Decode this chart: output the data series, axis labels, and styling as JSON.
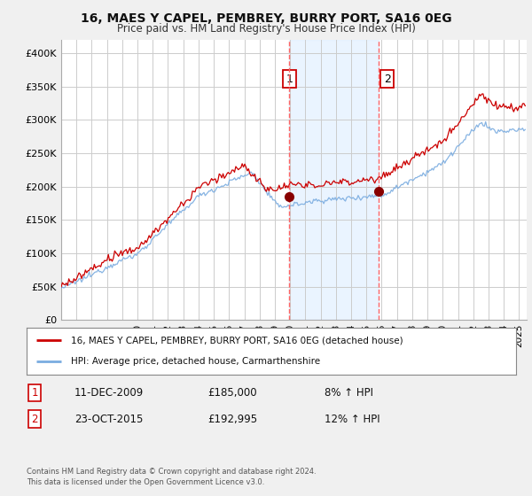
{
  "title": "16, MAES Y CAPEL, PEMBREY, BURRY PORT, SA16 0EG",
  "subtitle": "Price paid vs. HM Land Registry's House Price Index (HPI)",
  "ylabel_ticks": [
    "£0",
    "£50K",
    "£100K",
    "£150K",
    "£200K",
    "£250K",
    "£300K",
    "£350K",
    "£400K"
  ],
  "ytick_vals": [
    0,
    50000,
    100000,
    150000,
    200000,
    250000,
    300000,
    350000,
    400000
  ],
  "ylim": [
    0,
    420000
  ],
  "xlim_start": 1995.0,
  "xlim_end": 2025.5,
  "line1_color": "#cc0000",
  "line2_color": "#7aace0",
  "vline1_x": 2009.95,
  "vline2_x": 2015.81,
  "vline_color": "#ff6666",
  "vline_style": "--",
  "shade_color": "#ddeeff",
  "marker1_x": 2009.95,
  "marker1_y": 185000,
  "marker2_x": 2015.81,
  "marker2_y": 192995,
  "legend_label1": "16, MAES Y CAPEL, PEMBREY, BURRY PORT, SA16 0EG (detached house)",
  "legend_label2": "HPI: Average price, detached house, Carmarthenshire",
  "annotation1_label": "1",
  "annotation2_label": "2",
  "footer1": "Contains HM Land Registry data © Crown copyright and database right 2024.",
  "footer2": "This data is licensed under the Open Government Licence v3.0.",
  "bg_color": "#f0f0f0",
  "plot_bg_color": "#ffffff",
  "grid_color": "#cccccc",
  "table_row1": [
    "1",
    "11-DEC-2009",
    "£185,000",
    "8% ↑ HPI"
  ],
  "table_row2": [
    "2",
    "23-OCT-2015",
    "£192,995",
    "12% ↑ HPI"
  ]
}
